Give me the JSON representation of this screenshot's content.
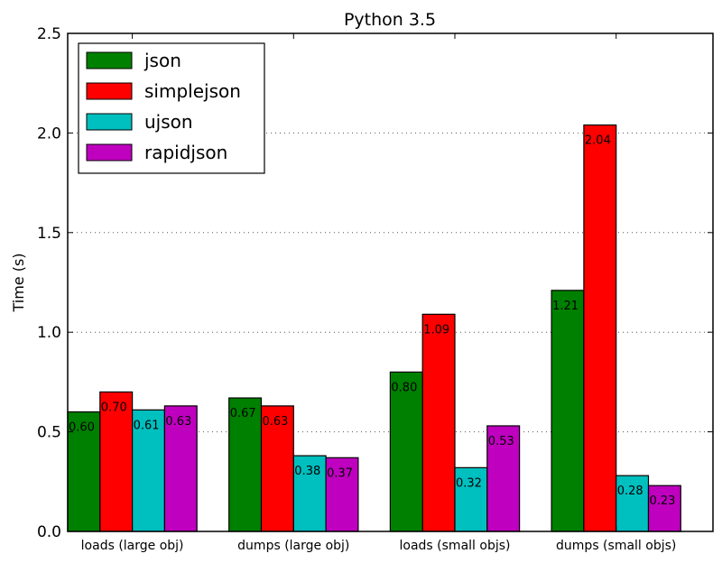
{
  "chart_data": {
    "type": "bar",
    "title": "Python 3.5",
    "xlabel": "",
    "ylabel": "Time (s)",
    "ylim": [
      0,
      2.5
    ],
    "yticks": [
      "0.0",
      "0.5",
      "1.0",
      "1.5",
      "2.0",
      "2.5"
    ],
    "grid": "horizontal dotted",
    "legend_position": "top-left",
    "categories": [
      "loads (large obj)",
      "dumps (large obj)",
      "loads (small objs)",
      "dumps (small objs)"
    ],
    "series": [
      {
        "name": "json",
        "color": "#008000",
        "values": [
          0.6,
          0.67,
          0.8,
          1.21
        ],
        "labels": [
          "0.60",
          "0.67",
          "0.80",
          "1.21"
        ]
      },
      {
        "name": "simplejson",
        "color": "#ff0000",
        "values": [
          0.7,
          0.63,
          1.09,
          2.04
        ],
        "labels": [
          "0.70",
          "0.63",
          "1.09",
          "2.04"
        ]
      },
      {
        "name": "ujson",
        "color": "#00bfbf",
        "values": [
          0.61,
          0.38,
          0.32,
          0.28
        ],
        "labels": [
          "0.61",
          "0.38",
          "0.32",
          "0.28"
        ]
      },
      {
        "name": "rapidjson",
        "color": "#bf00bf",
        "values": [
          0.63,
          0.37,
          0.53,
          0.23
        ],
        "labels": [
          "0.63",
          "0.37",
          "0.53",
          "0.23"
        ]
      }
    ]
  }
}
